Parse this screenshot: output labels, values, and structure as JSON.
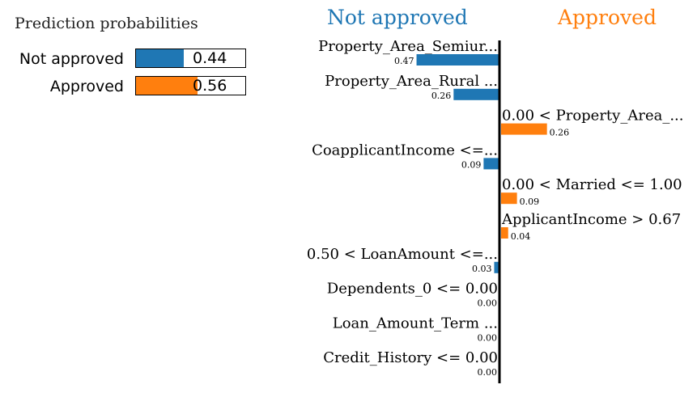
{
  "probabilities": {
    "title": "Prediction probabilities",
    "items": [
      {
        "label": "Not approved",
        "value": 0.44,
        "value_text": "0.44",
        "color": "#1f77b4"
      },
      {
        "label": "Approved",
        "value": 0.56,
        "value_text": "0.56",
        "color": "#ff7f0e"
      }
    ]
  },
  "chart_data": {
    "type": "bar",
    "orientation": "horizontal",
    "negative_class": {
      "label": "Not approved",
      "color": "#1f77b4"
    },
    "positive_class": {
      "label": "Approved",
      "color": "#ff7f0e"
    },
    "features": [
      {
        "label": "Property_Area_Semiur...",
        "value": -0.47,
        "value_text": "0.47"
      },
      {
        "label": "Property_Area_Rural ...",
        "value": -0.26,
        "value_text": "0.26"
      },
      {
        "label": "0.00 < Property_Area_...",
        "value": 0.26,
        "value_text": "0.26"
      },
      {
        "label": "CoapplicantIncome <=...",
        "value": -0.09,
        "value_text": "0.09"
      },
      {
        "label": "0.00 < Married <= 1.00",
        "value": 0.09,
        "value_text": "0.09"
      },
      {
        "label": "ApplicantIncome > 0.67",
        "value": 0.04,
        "value_text": "0.04"
      },
      {
        "label": "0.50 < LoanAmount <=...",
        "value": -0.03,
        "value_text": "0.03"
      },
      {
        "label": "Dependents_0 <= 0.00",
        "value": -0.0,
        "value_text": "0.00"
      },
      {
        "label": "Loan_Amount_Term ...",
        "value": -0.0,
        "value_text": "0.00"
      },
      {
        "label": "Credit_History <= 0.00",
        "value": -0.0,
        "value_text": "0.00"
      }
    ]
  }
}
